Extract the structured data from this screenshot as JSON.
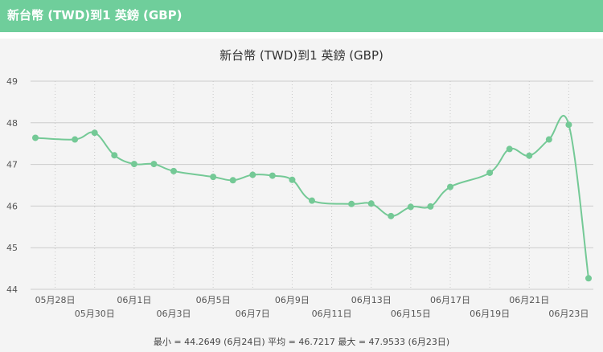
{
  "header": {
    "title": "新台幣 (TWD)到1 英鎊 (GBP)"
  },
  "colors": {
    "accent": "#6fce9b",
    "line": "#74c996",
    "panel": "#f4f4f4"
  },
  "chart_data": {
    "type": "line",
    "title": "新台幣 (TWD)到1 英鎊 (GBP)",
    "ylim": [
      44,
      49
    ],
    "yticks": [
      44,
      45,
      46,
      47,
      48,
      49
    ],
    "grid": true,
    "xlabel": "",
    "ylabel": "",
    "x_ticks": [
      {
        "date": "2023-05-28",
        "label": "05月28日",
        "row": 0
      },
      {
        "date": "2023-05-30",
        "label": "05月30日",
        "row": 1
      },
      {
        "date": "2023-06-01",
        "label": "06月1日",
        "row": 0
      },
      {
        "date": "2023-06-03",
        "label": "06月3日",
        "row": 1
      },
      {
        "date": "2023-06-05",
        "label": "06月5日",
        "row": 0
      },
      {
        "date": "2023-06-07",
        "label": "06月7日",
        "row": 1
      },
      {
        "date": "2023-06-09",
        "label": "06月9日",
        "row": 0
      },
      {
        "date": "2023-06-11",
        "label": "06月11日",
        "row": 1
      },
      {
        "date": "2023-06-13",
        "label": "06月13日",
        "row": 0
      },
      {
        "date": "2023-06-15",
        "label": "06月15日",
        "row": 1
      },
      {
        "date": "2023-06-17",
        "label": "06月17日",
        "row": 0
      },
      {
        "date": "2023-06-19",
        "label": "06月19日",
        "row": 1
      },
      {
        "date": "2023-06-21",
        "label": "06月21日",
        "row": 0
      },
      {
        "date": "2023-06-23",
        "label": "06月23日",
        "row": 1
      }
    ],
    "series": [
      {
        "points": [
          {
            "x": "2023-05-27",
            "y": 47.64
          },
          {
            "x": "2023-05-29",
            "y": 47.6
          },
          {
            "x": "2023-05-30",
            "y": 47.76
          },
          {
            "x": "2023-05-31",
            "y": 47.22
          },
          {
            "x": "2023-06-01",
            "y": 47.01
          },
          {
            "x": "2023-06-02",
            "y": 47.01
          },
          {
            "x": "2023-06-03",
            "y": 46.84
          },
          {
            "x": "2023-06-05",
            "y": 46.7
          },
          {
            "x": "2023-06-06",
            "y": 46.62
          },
          {
            "x": "2023-06-07",
            "y": 46.75
          },
          {
            "x": "2023-06-08",
            "y": 46.73
          },
          {
            "x": "2023-06-09",
            "y": 46.63
          },
          {
            "x": "2023-06-10",
            "y": 46.13
          },
          {
            "x": "2023-06-12",
            "y": 46.05
          },
          {
            "x": "2023-06-13",
            "y": 46.06
          },
          {
            "x": "2023-06-14",
            "y": 45.76
          },
          {
            "x": "2023-06-15",
            "y": 45.98
          },
          {
            "x": "2023-06-16",
            "y": 45.99
          },
          {
            "x": "2023-06-17",
            "y": 46.46
          },
          {
            "x": "2023-06-19",
            "y": 46.8
          },
          {
            "x": "2023-06-20",
            "y": 47.37
          },
          {
            "x": "2023-06-21",
            "y": 47.21
          },
          {
            "x": "2023-06-22",
            "y": 47.6
          },
          {
            "x": "2023-06-23",
            "y": 47.9533
          },
          {
            "x": "2023-06-24",
            "y": 44.2649
          }
        ]
      }
    ],
    "summary": "最小 = 44.2649 (6月24日) 平均 = 46.7217 最大 = 47.9533 (6月23日)"
  }
}
